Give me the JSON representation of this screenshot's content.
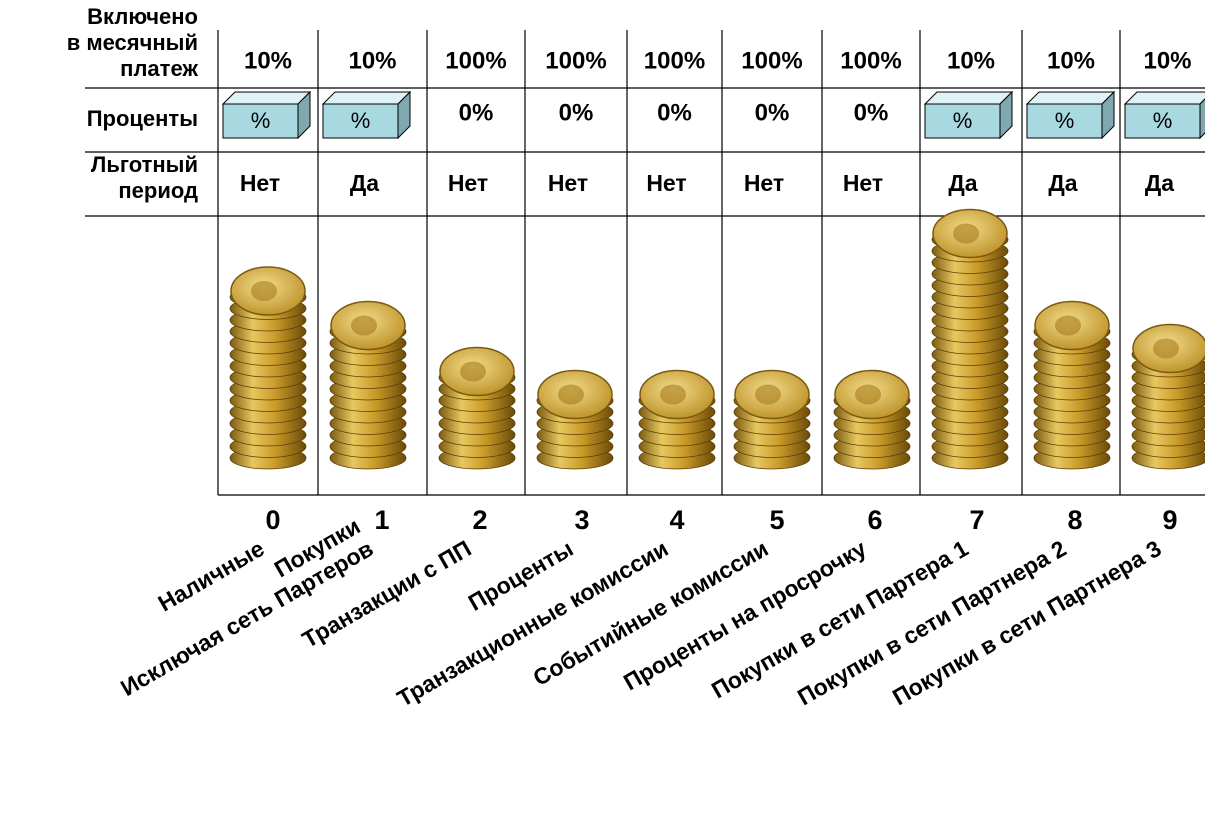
{
  "row_labels": {
    "included": [
      "Включено",
      "в месячный",
      "платеж"
    ],
    "interest": [
      "Проценты"
    ],
    "grace": [
      "Льготный",
      "период"
    ]
  },
  "columns": [
    {
      "number": "0",
      "included": "10%",
      "interest": "%",
      "boxed": true,
      "grace": "Нет",
      "label": [
        "Наличные"
      ]
    },
    {
      "number": "1",
      "included": "10%",
      "interest": "%",
      "boxed": true,
      "grace": "Да",
      "label": [
        "Покупки",
        "Исключая сеть Партеров"
      ]
    },
    {
      "number": "2",
      "included": "100%",
      "interest": "0%",
      "boxed": false,
      "grace": "Нет",
      "label": [
        "Транзакции с ПП"
      ]
    },
    {
      "number": "3",
      "included": "100%",
      "interest": "0%",
      "boxed": false,
      "grace": "Нет",
      "label": [
        "Проценты"
      ]
    },
    {
      "number": "4",
      "included": "100%",
      "interest": "0%",
      "boxed": false,
      "grace": "Нет",
      "label": [
        "Транзакционные комиссии"
      ]
    },
    {
      "number": "5",
      "included": "100%",
      "interest": "0%",
      "boxed": false,
      "grace": "Нет",
      "label": [
        "Событийные комиссии"
      ]
    },
    {
      "number": "6",
      "included": "100%",
      "interest": "0%",
      "boxed": false,
      "grace": "Нет",
      "label": [
        "Проценты на просрочку"
      ]
    },
    {
      "number": "7",
      "included": "10%",
      "interest": "%",
      "boxed": true,
      "grace": "Да",
      "label": [
        "Покупки в сети Партера 1"
      ]
    },
    {
      "number": "8",
      "included": "10%",
      "interest": "%",
      "boxed": true,
      "grace": "Да",
      "label": [
        "Покупки в сети Партнера 2"
      ]
    },
    {
      "number": "9",
      "included": "10%",
      "interest": "%",
      "boxed": true,
      "grace": "Да",
      "label": [
        "Покупки в сети Партнера 3"
      ]
    }
  ]
}
